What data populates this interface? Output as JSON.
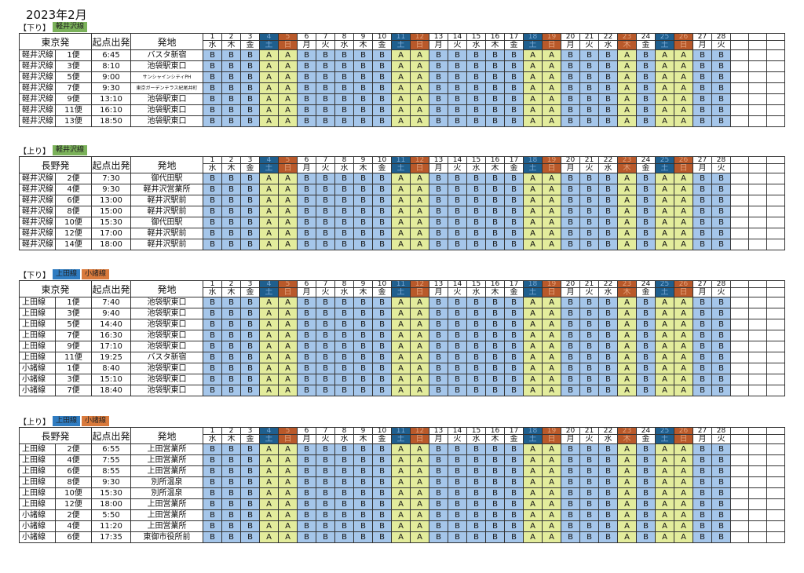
{
  "title": "2023年2月",
  "colors": {
    "A": "#e3ec9c",
    "B": "#a5c6ea",
    "saturday": "#1f5f8e",
    "holiday_sunday": "#b9592a",
    "karuizawa_badge": "#7bb25a",
    "ueda_badge": "#2f7cc1",
    "komoro_badge": "#d97a3c"
  },
  "days": [
    "1",
    "2",
    "3",
    "4",
    "5",
    "6",
    "7",
    "8",
    "9",
    "10",
    "11",
    "12",
    "13",
    "14",
    "15",
    "16",
    "17",
    "18",
    "19",
    "20",
    "21",
    "22",
    "23",
    "24",
    "25",
    "26",
    "27",
    "28"
  ],
  "weekdays": [
    "水",
    "木",
    "金",
    "土",
    "日",
    "月",
    "火",
    "水",
    "木",
    "金",
    "土",
    "日",
    "月",
    "火",
    "水",
    "木",
    "金",
    "土",
    "日",
    "月",
    "火",
    "水",
    "木",
    "金",
    "土",
    "日",
    "月",
    "火"
  ],
  "day_types": [
    "w",
    "w",
    "w",
    "S",
    "U",
    "w",
    "w",
    "w",
    "w",
    "w",
    "S",
    "U",
    "w",
    "w",
    "w",
    "w",
    "w",
    "S",
    "U",
    "w",
    "w",
    "w",
    "U",
    "w",
    "S",
    "U",
    "w",
    "w"
  ],
  "pattern": [
    "B",
    "B",
    "B",
    "A",
    "A",
    "B",
    "B",
    "B",
    "B",
    "B",
    "A",
    "A",
    "B",
    "B",
    "B",
    "B",
    "B",
    "A",
    "A",
    "B",
    "B",
    "B",
    "A",
    "B",
    "A",
    "A",
    "B",
    "B"
  ],
  "col_headers": {
    "bus": "便",
    "time": "起点出発",
    "stop": "発地"
  },
  "sections": [
    {
      "direction": "【下り】",
      "badges": [
        {
          "label": "軽井沢線",
          "color": "#7bb25a"
        }
      ],
      "origin": "東京発",
      "rows": [
        {
          "line": "軽井沢線",
          "bus": "1便",
          "time": "6:45",
          "stop": "バスタ新宿"
        },
        {
          "line": "軽井沢線",
          "bus": "3便",
          "time": "8:10",
          "stop": "池袋駅東口"
        },
        {
          "line": "軽井沢線",
          "bus": "5便",
          "time": "9:00",
          "stop": "サンシャインシティPH"
        },
        {
          "line": "軽井沢線",
          "bus": "7便",
          "time": "9:30",
          "stop": "東京ガーデンテラス紀尾井町"
        },
        {
          "line": "軽井沢線",
          "bus": "9便",
          "time": "13:10",
          "stop": "池袋駅東口"
        },
        {
          "line": "軽井沢線",
          "bus": "11便",
          "time": "16:10",
          "stop": "池袋駅東口"
        },
        {
          "line": "軽井沢線",
          "bus": "13便",
          "time": "18:50",
          "stop": "池袋駅東口"
        }
      ]
    },
    {
      "direction": "【上り】",
      "badges": [
        {
          "label": "軽井沢線",
          "color": "#7bb25a"
        }
      ],
      "origin": "長野発",
      "rows": [
        {
          "line": "軽井沢線",
          "bus": "2便",
          "time": "7:30",
          "stop": "御代田駅"
        },
        {
          "line": "軽井沢線",
          "bus": "4便",
          "time": "9:30",
          "stop": "軽井沢営業所"
        },
        {
          "line": "軽井沢線",
          "bus": "6便",
          "time": "13:00",
          "stop": "軽井沢駅前"
        },
        {
          "line": "軽井沢線",
          "bus": "8便",
          "time": "15:00",
          "stop": "軽井沢駅前"
        },
        {
          "line": "軽井沢線",
          "bus": "10便",
          "time": "15:30",
          "stop": "御代田駅"
        },
        {
          "line": "軽井沢線",
          "bus": "12便",
          "time": "17:00",
          "stop": "軽井沢駅前"
        },
        {
          "line": "軽井沢線",
          "bus": "14便",
          "time": "18:00",
          "stop": "軽井沢駅前"
        }
      ]
    },
    {
      "direction": "【下り】",
      "badges": [
        {
          "label": "上田線",
          "color": "#2f7cc1"
        },
        {
          "label": "小諸線",
          "color": "#d97a3c"
        }
      ],
      "origin": "東京発",
      "rows": [
        {
          "line": "上田線",
          "bus": "1便",
          "time": "7:40",
          "stop": "池袋駅東口"
        },
        {
          "line": "上田線",
          "bus": "3便",
          "time": "9:40",
          "stop": "池袋駅東口"
        },
        {
          "line": "上田線",
          "bus": "5便",
          "time": "14:40",
          "stop": "池袋駅東口"
        },
        {
          "line": "上田線",
          "bus": "7便",
          "time": "16:30",
          "stop": "池袋駅東口"
        },
        {
          "line": "上田線",
          "bus": "9便",
          "time": "17:10",
          "stop": "池袋駅東口"
        },
        {
          "line": "上田線",
          "bus": "11便",
          "time": "19:25",
          "stop": "バスタ新宿"
        },
        {
          "line": "小諸線",
          "bus": "1便",
          "time": "8:40",
          "stop": "池袋駅東口"
        },
        {
          "line": "小諸線",
          "bus": "3便",
          "time": "15:10",
          "stop": "池袋駅東口"
        },
        {
          "line": "小諸線",
          "bus": "7便",
          "time": "18:40",
          "stop": "池袋駅東口"
        }
      ]
    },
    {
      "direction": "【上り】",
      "badges": [
        {
          "label": "上田線",
          "color": "#2f7cc1"
        },
        {
          "label": "小諸線",
          "color": "#d97a3c"
        }
      ],
      "origin": "長野発",
      "rows": [
        {
          "line": "上田線",
          "bus": "2便",
          "time": "6:55",
          "stop": "上田営業所"
        },
        {
          "line": "上田線",
          "bus": "4便",
          "time": "7:55",
          "stop": "上田営業所"
        },
        {
          "line": "上田線",
          "bus": "6便",
          "time": "8:55",
          "stop": "上田営業所"
        },
        {
          "line": "上田線",
          "bus": "8便",
          "time": "9:30",
          "stop": "別所温泉"
        },
        {
          "line": "上田線",
          "bus": "10便",
          "time": "15:30",
          "stop": "別所温泉"
        },
        {
          "line": "上田線",
          "bus": "12便",
          "time": "18:00",
          "stop": "上田営業所"
        },
        {
          "line": "小諸線",
          "bus": "2便",
          "time": "5:50",
          "stop": "上田営業所"
        },
        {
          "line": "小諸線",
          "bus": "4便",
          "time": "11:20",
          "stop": "上田営業所"
        },
        {
          "line": "小諸線",
          "bus": "6便",
          "time": "17:35",
          "stop": "東御市役所前"
        }
      ]
    }
  ]
}
